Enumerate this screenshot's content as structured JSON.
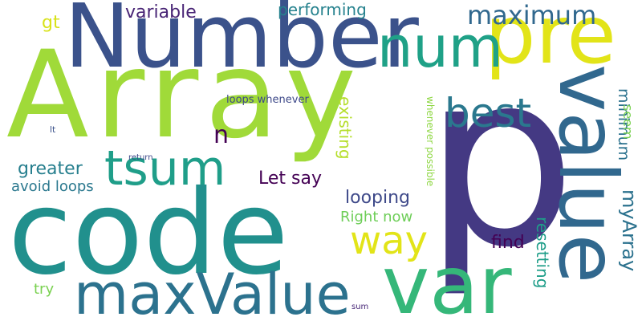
{
  "colors": {
    "background": "#ffffff",
    "viridis": [
      "#440154",
      "#482878",
      "#3e4a89",
      "#31688e",
      "#26828e",
      "#1f9e89",
      "#35b779",
      "#6ece58",
      "#b5de2b",
      "#fde725"
    ]
  },
  "words": {
    "array": "Array",
    "number": "Number",
    "code": "code",
    "p": "p",
    "pre": "pre",
    "value": "value",
    "var": "var",
    "maxvalue": "maxValue",
    "tsum": "tsum",
    "num": "num",
    "best": "best",
    "way": "way",
    "maximum": "maximum",
    "variable": "variable",
    "performing": "performing",
    "gt": "gt",
    "n": "n",
    "greater": "greater",
    "avoid_loops": "avoid loops",
    "let_say": "Let say",
    "looping": "looping",
    "right_now": "Right now",
    "find": "find",
    "existing": "existing",
    "loops_whenever": "loops whenever",
    "whenever_possible": "whenever possible",
    "minimum": "minimum",
    "seem": "seem",
    "myarray": "myArray",
    "resetting": "resetting",
    "try": "try",
    "sum": "sum",
    "lt": "lt",
    "return": "return"
  }
}
